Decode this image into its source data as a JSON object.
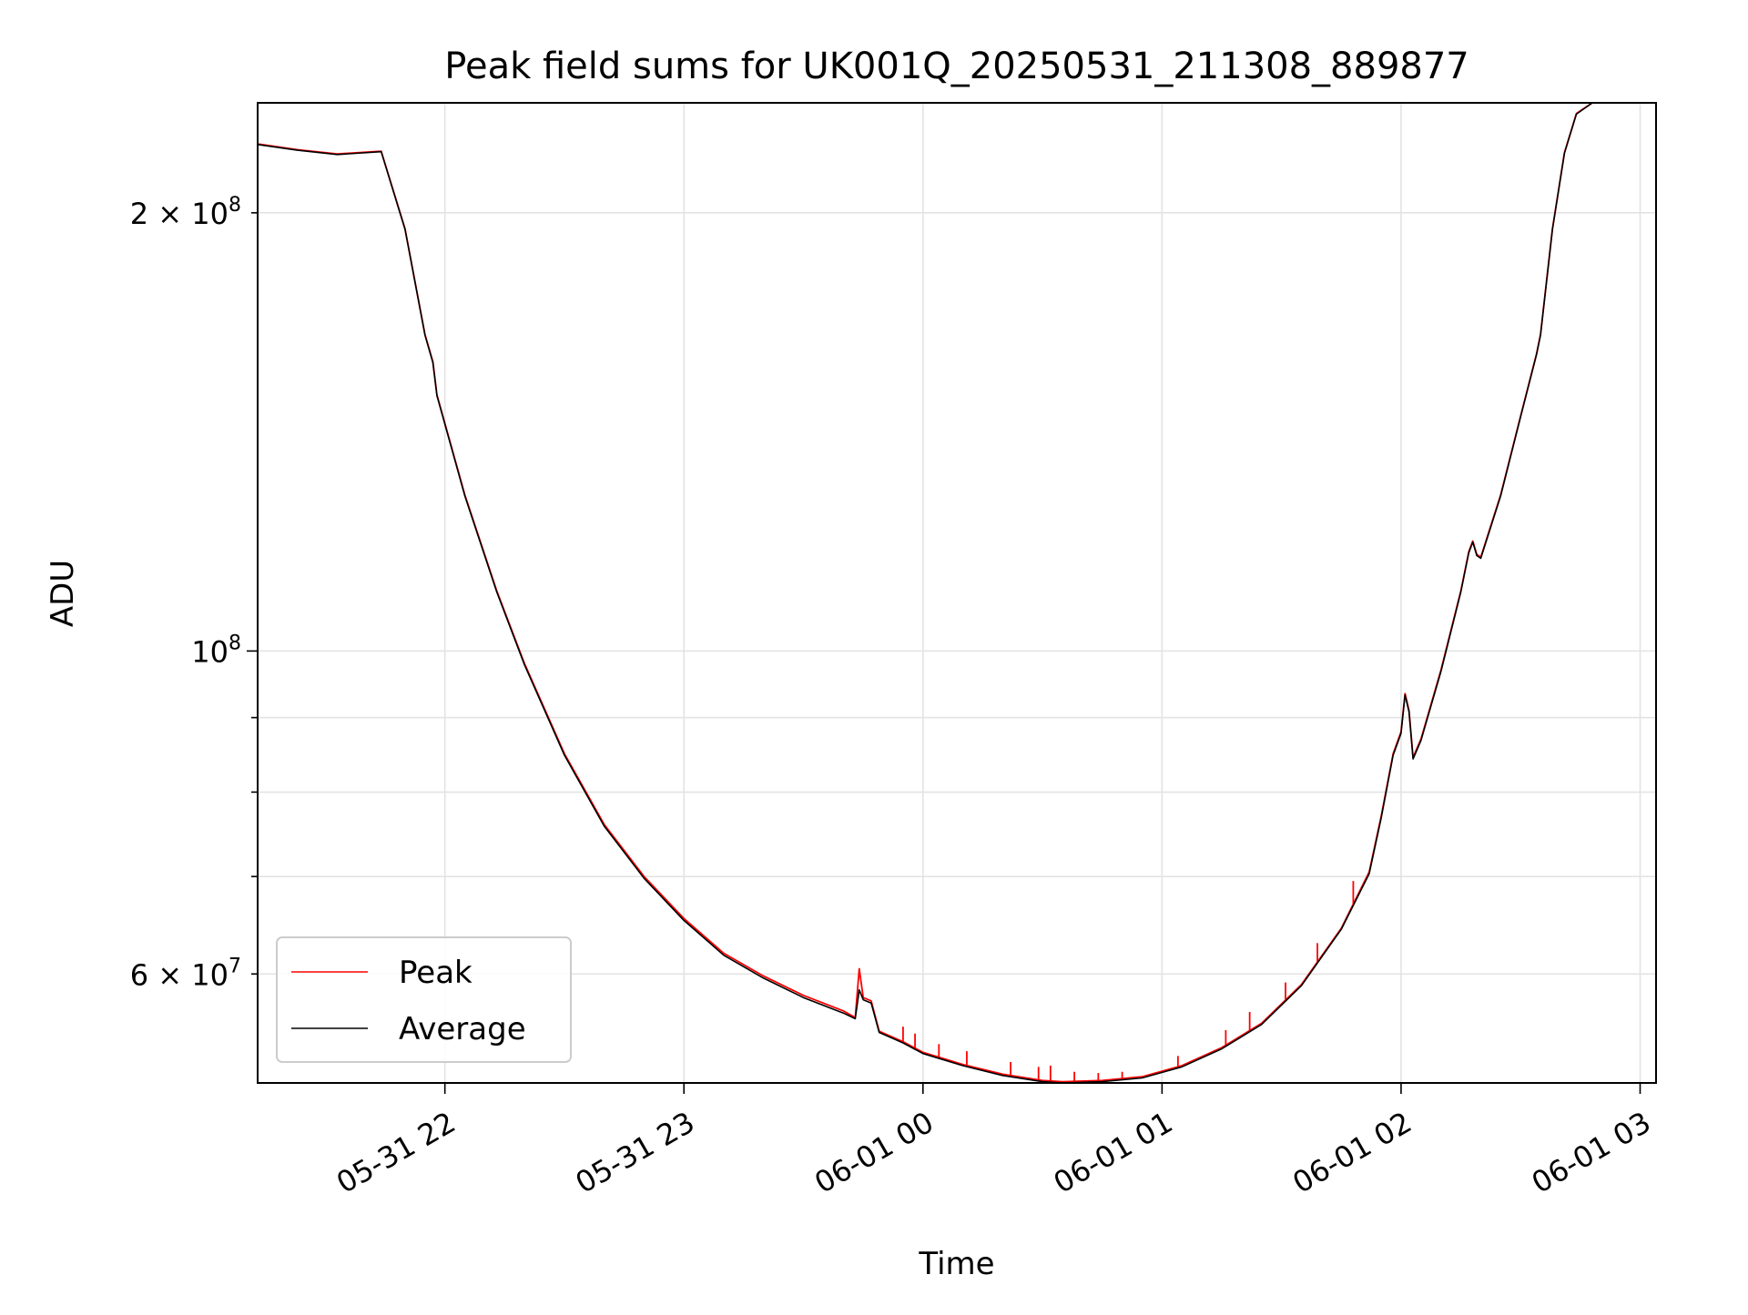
{
  "chart_data": {
    "type": "line",
    "title": "Peak field sums for UK001Q_20250531_211308_889877",
    "xlabel": "Time",
    "ylabel": "ADU",
    "yscale": "log",
    "ylim": [
      50500000,
      238000000
    ],
    "xlim": [
      "2025-05-31 21:13",
      "2025-06-01 03:04"
    ],
    "grid": true,
    "legend_placement": "lower-left",
    "x_ticks": [
      {
        "time": "2025-05-31 22:00",
        "label": "05-31 22"
      },
      {
        "time": "2025-05-31 23:00",
        "label": "05-31 23"
      },
      {
        "time": "2025-06-01 00:00",
        "label": "06-01 00"
      },
      {
        "time": "2025-06-01 01:00",
        "label": "06-01 01"
      },
      {
        "time": "2025-06-01 02:00",
        "label": "06-01 02"
      },
      {
        "time": "2025-06-01 03:00",
        "label": "06-01 03"
      }
    ],
    "y_ticks_major": [
      {
        "value": 100000000,
        "base": "10",
        "exp": "8"
      }
    ],
    "y_ticks_labeled_minor": [
      {
        "value": 200000000,
        "mantissa": "2",
        "base": "10",
        "exp": "8"
      },
      {
        "value": 60000000,
        "mantissa": "6",
        "base": "10",
        "exp": "7"
      }
    ],
    "y_ticks_minor": [
      50000000,
      70000000,
      80000000,
      90000000
    ],
    "series": [
      {
        "name": "Peak",
        "color": "#ff0000",
        "points": [
          [
            "2025-05-31 21:13",
            223000000
          ],
          [
            "2025-05-31 21:23",
            221000000
          ],
          [
            "2025-05-31 21:33",
            219500000
          ],
          [
            "2025-05-31 21:44",
            220500000
          ],
          [
            "2025-05-31 21:50",
            195000000
          ],
          [
            "2025-05-31 21:55",
            165000000
          ],
          [
            "2025-05-31 21:57",
            158000000
          ],
          [
            "2025-05-31 21:58",
            150000000
          ],
          [
            "2025-05-31 22:05",
            128000000
          ],
          [
            "2025-05-31 22:13",
            110000000
          ],
          [
            "2025-05-31 22:20",
            98000000
          ],
          [
            "2025-05-31 22:30",
            85000000
          ],
          [
            "2025-05-31 22:40",
            76000000
          ],
          [
            "2025-05-31 22:50",
            70000000
          ],
          [
            "2025-05-31 23:00",
            65500000
          ],
          [
            "2025-05-31 23:10",
            62000000
          ],
          [
            "2025-05-31 23:20",
            59800000
          ],
          [
            "2025-05-31 23:30",
            58000000
          ],
          [
            "2025-05-31 23:40",
            56600000
          ],
          [
            "2025-05-31 23:43",
            56000000
          ],
          [
            "2025-05-31 23:44",
            60500000
          ],
          [
            "2025-05-31 23:45",
            57800000
          ],
          [
            "2025-05-31 23:47",
            57500000
          ],
          [
            "2025-05-31 23:49",
            54800000
          ],
          [
            "2025-05-31 23:55",
            53900000
          ],
          [
            "2025-06-01 00:00",
            53000000
          ],
          [
            "2025-06-01 00:10",
            52000000
          ],
          [
            "2025-06-01 00:20",
            51200000
          ],
          [
            "2025-06-01 00:30",
            50700000
          ],
          [
            "2025-06-01 00:35",
            50600000
          ],
          [
            "2025-06-01 00:45",
            50700000
          ],
          [
            "2025-06-01 00:55",
            51000000
          ],
          [
            "2025-06-01 01:05",
            51900000
          ],
          [
            "2025-06-01 01:15",
            53400000
          ],
          [
            "2025-06-01 01:25",
            55500000
          ],
          [
            "2025-06-01 01:35",
            59000000
          ],
          [
            "2025-06-01 01:45",
            64500000
          ],
          [
            "2025-06-01 01:52",
            70500000
          ],
          [
            "2025-06-01 01:55",
            77000000
          ],
          [
            "2025-06-01 01:58",
            85000000
          ],
          [
            "2025-06-01 02:00",
            88000000
          ],
          [
            "2025-06-01 02:01",
            93500000
          ],
          [
            "2025-06-01 02:02",
            91000000
          ],
          [
            "2025-06-01 02:03",
            84500000
          ],
          [
            "2025-06-01 02:05",
            87000000
          ],
          [
            "2025-06-01 02:10",
            97000000
          ],
          [
            "2025-06-01 02:15",
            110000000
          ],
          [
            "2025-06-01 02:17",
            117000000
          ],
          [
            "2025-06-01 02:18",
            119000000
          ],
          [
            "2025-06-01 02:19",
            116500000
          ],
          [
            "2025-06-01 02:20",
            116000000
          ],
          [
            "2025-06-01 02:25",
            128000000
          ],
          [
            "2025-06-01 02:30",
            145000000
          ],
          [
            "2025-06-01 02:34",
            160000000
          ],
          [
            "2025-06-01 02:35",
            165000000
          ],
          [
            "2025-06-01 02:38",
            195000000
          ],
          [
            "2025-06-01 02:41",
            220000000
          ],
          [
            "2025-06-01 02:44",
            234000000
          ],
          [
            "2025-06-01 02:48",
            238000000
          ]
        ],
        "spikes": [
          [
            "2025-05-31 23:55",
            55200000
          ],
          [
            "2025-05-31 23:58",
            54600000
          ],
          [
            "2025-06-01 00:04",
            53700000
          ],
          [
            "2025-06-01 00:11",
            53100000
          ],
          [
            "2025-06-01 00:22",
            52200000
          ],
          [
            "2025-06-01 00:29",
            51800000
          ],
          [
            "2025-06-01 00:32",
            51900000
          ],
          [
            "2025-06-01 00:38",
            51400000
          ],
          [
            "2025-06-01 00:44",
            51300000
          ],
          [
            "2025-06-01 00:50",
            51400000
          ],
          [
            "2025-06-01 01:04",
            52700000
          ],
          [
            "2025-06-01 01:16",
            54900000
          ],
          [
            "2025-06-01 01:22",
            56500000
          ],
          [
            "2025-06-01 01:31",
            59200000
          ],
          [
            "2025-06-01 01:39",
            63000000
          ],
          [
            "2025-06-01 01:48",
            69500000
          ]
        ]
      },
      {
        "name": "Average",
        "color": "#000000",
        "points": [
          [
            "2025-05-31 21:13",
            222800000
          ],
          [
            "2025-05-31 21:23",
            220800000
          ],
          [
            "2025-05-31 21:33",
            219300000
          ],
          [
            "2025-05-31 21:44",
            220300000
          ],
          [
            "2025-05-31 21:50",
            194800000
          ],
          [
            "2025-05-31 21:55",
            164800000
          ],
          [
            "2025-05-31 21:57",
            157800000
          ],
          [
            "2025-05-31 21:58",
            149800000
          ],
          [
            "2025-05-31 22:05",
            127800000
          ],
          [
            "2025-05-31 22:13",
            109800000
          ],
          [
            "2025-05-31 22:20",
            97800000
          ],
          [
            "2025-05-31 22:30",
            84800000
          ],
          [
            "2025-05-31 22:40",
            75800000
          ],
          [
            "2025-05-31 22:50",
            69800000
          ],
          [
            "2025-05-31 23:00",
            65300000
          ],
          [
            "2025-05-31 23:10",
            61800000
          ],
          [
            "2025-05-31 23:20",
            59600000
          ],
          [
            "2025-05-31 23:30",
            57800000
          ],
          [
            "2025-05-31 23:40",
            56400000
          ],
          [
            "2025-05-31 23:43",
            55900000
          ],
          [
            "2025-05-31 23:44",
            58500000
          ],
          [
            "2025-05-31 23:45",
            57600000
          ],
          [
            "2025-05-31 23:47",
            57300000
          ],
          [
            "2025-05-31 23:49",
            54700000
          ],
          [
            "2025-05-31 23:55",
            53800000
          ],
          [
            "2025-06-01 00:00",
            52900000
          ],
          [
            "2025-06-01 00:10",
            51900000
          ],
          [
            "2025-06-01 00:20",
            51100000
          ],
          [
            "2025-06-01 00:30",
            50600000
          ],
          [
            "2025-06-01 00:35",
            50500000
          ],
          [
            "2025-06-01 00:45",
            50600000
          ],
          [
            "2025-06-01 00:55",
            50900000
          ],
          [
            "2025-06-01 01:05",
            51800000
          ],
          [
            "2025-06-01 01:15",
            53300000
          ],
          [
            "2025-06-01 01:25",
            55400000
          ],
          [
            "2025-06-01 01:35",
            58900000
          ],
          [
            "2025-06-01 01:45",
            64400000
          ],
          [
            "2025-06-01 01:52",
            70300000
          ],
          [
            "2025-06-01 01:55",
            76800000
          ],
          [
            "2025-06-01 01:58",
            84800000
          ],
          [
            "2025-06-01 02:00",
            87800000
          ],
          [
            "2025-06-01 02:01",
            93300000
          ],
          [
            "2025-06-01 02:02",
            90800000
          ],
          [
            "2025-06-01 02:03",
            84300000
          ],
          [
            "2025-06-01 02:05",
            86800000
          ],
          [
            "2025-06-01 02:10",
            96800000
          ],
          [
            "2025-06-01 02:15",
            109800000
          ],
          [
            "2025-06-01 02:17",
            116800000
          ],
          [
            "2025-06-01 02:18",
            118800000
          ],
          [
            "2025-06-01 02:19",
            116300000
          ],
          [
            "2025-06-01 02:20",
            115800000
          ],
          [
            "2025-06-01 02:25",
            127800000
          ],
          [
            "2025-06-01 02:30",
            144800000
          ],
          [
            "2025-06-01 02:34",
            159800000
          ],
          [
            "2025-06-01 02:35",
            164800000
          ],
          [
            "2025-06-01 02:38",
            194800000
          ],
          [
            "2025-06-01 02:41",
            219800000
          ],
          [
            "2025-06-01 02:44",
            233800000
          ],
          [
            "2025-06-01 02:48",
            238000000
          ]
        ]
      }
    ]
  }
}
